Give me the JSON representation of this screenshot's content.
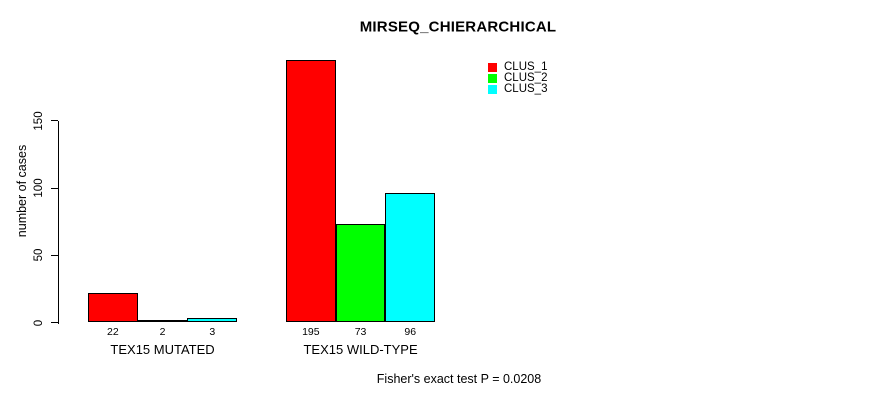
{
  "chart_data": {
    "type": "bar",
    "title": "MIRSEQ_CHIERARCHICAL",
    "ylabel": "number of cases",
    "xlabel": "",
    "categories": [
      "TEX15 MUTATED",
      "TEX15 WILD-TYPE"
    ],
    "series": [
      {
        "name": "CLUS_1",
        "color": "#ff0000",
        "values": [
          22,
          195
        ]
      },
      {
        "name": "CLUS_2",
        "color": "#00ff00",
        "values": [
          2,
          73
        ]
      },
      {
        "name": "CLUS_3",
        "color": "#00ffff",
        "values": [
          3,
          96
        ]
      }
    ],
    "yticks": [
      0,
      50,
      100,
      150
    ],
    "ylim": [
      0,
      195
    ],
    "grid": false,
    "legend_position": "top-right",
    "bar_value_labels_shown": true,
    "annotation": "Fisher's exact test P = 0.0208"
  },
  "colors": {
    "background": "#ffffff",
    "axis": "#000000",
    "text": "#000000",
    "clus_1": "#ff0000",
    "clus_2": "#00ff00",
    "clus_3": "#00ffff"
  }
}
